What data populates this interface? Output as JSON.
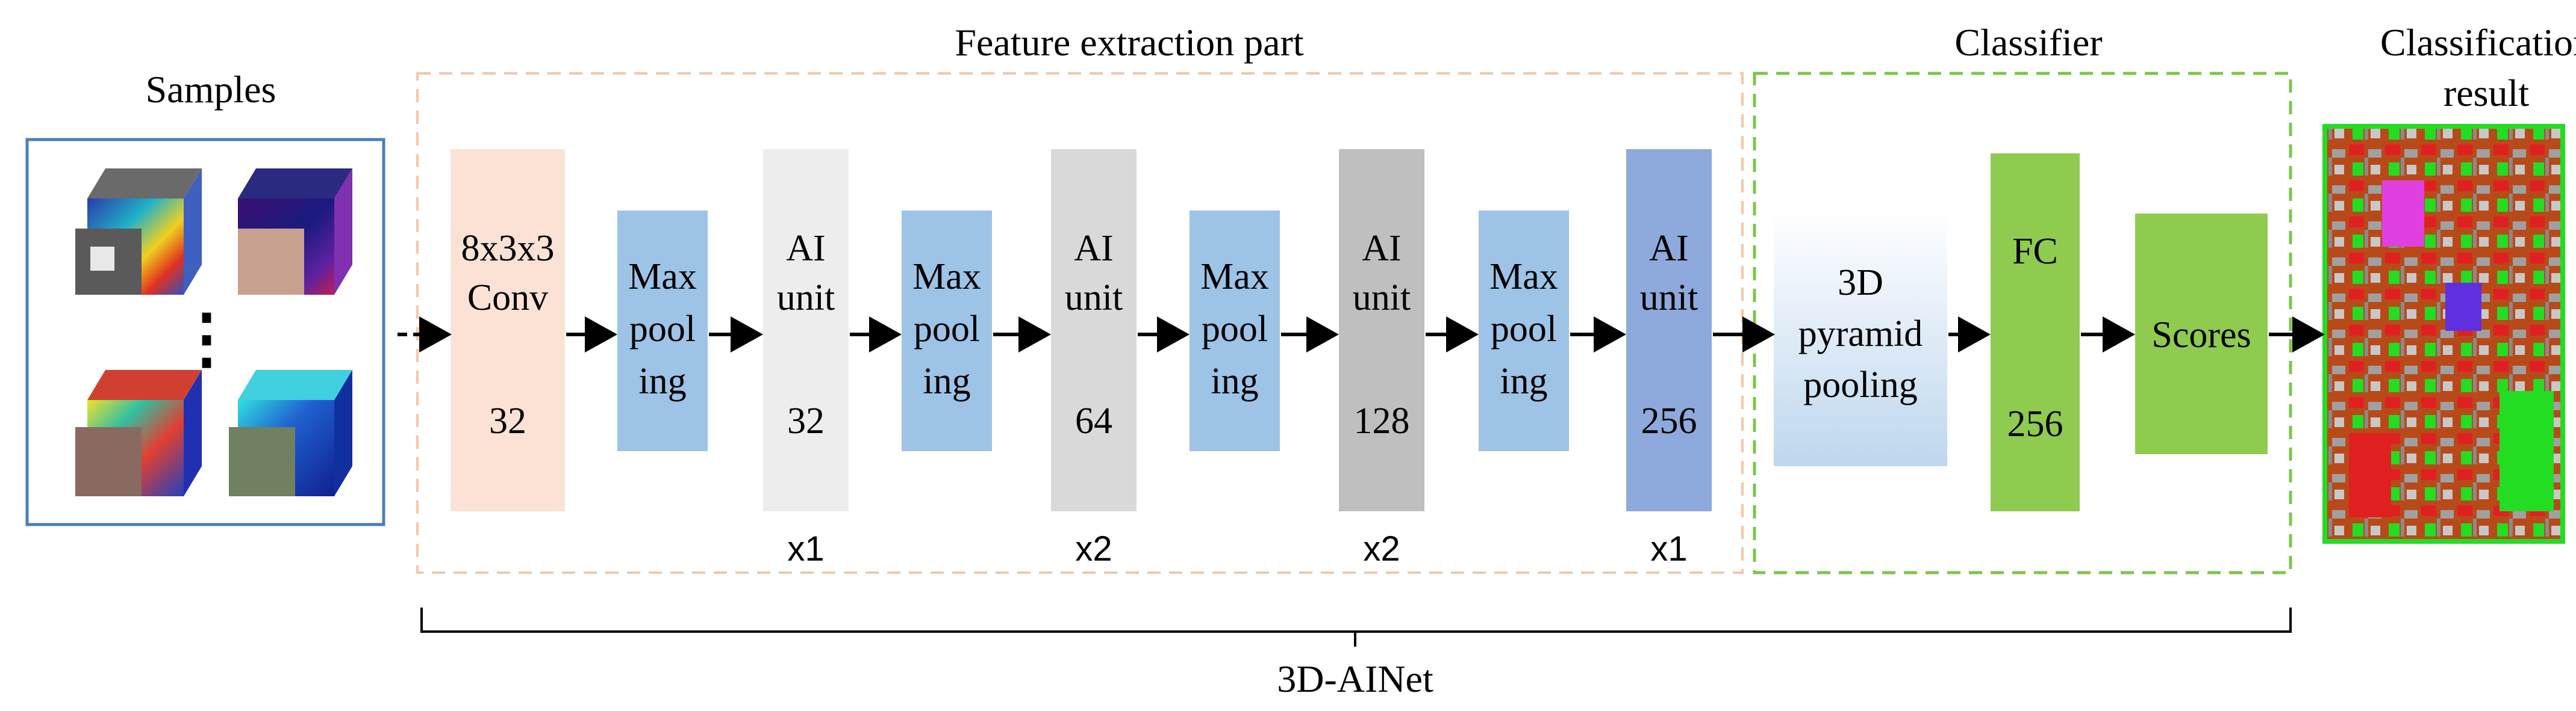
{
  "labels": {
    "samples": "Samples",
    "feature_part": "Feature extraction part",
    "classifier": "Classifier",
    "classification_result": [
      "Classification",
      "result"
    ],
    "network_name": "3D-AINet"
  },
  "samples_panel": {
    "cubes": [
      "hyperspectral-cube-1",
      "hyperspectral-cube-2",
      "hyperspectral-cube-3",
      "hyperspectral-cube-4"
    ],
    "ellipsis": "⋮"
  },
  "blocks": {
    "conv": {
      "lines": [
        "8x3x3",
        "Conv"
      ],
      "number": "32",
      "color": "#FBE2D5"
    },
    "maxpool_1": {
      "lines": [
        "Max",
        "pool",
        "ing"
      ],
      "color": "#9DC3E6"
    },
    "ai_unit_1": {
      "lines": [
        "AI",
        "unit"
      ],
      "number": "32",
      "repeat": "x1",
      "color": "#EDEDED"
    },
    "maxpool_2": {
      "lines": [
        "Max",
        "pool",
        "ing"
      ],
      "color": "#9DC3E6"
    },
    "ai_unit_2": {
      "lines": [
        "AI",
        "unit"
      ],
      "number": "64",
      "repeat": "x2",
      "color": "#D9D9D9"
    },
    "maxpool_3": {
      "lines": [
        "Max",
        "pool",
        "ing"
      ],
      "color": "#9DC3E6"
    },
    "ai_unit_3": {
      "lines": [
        "AI",
        "unit"
      ],
      "number": "128",
      "repeat": "x2",
      "color": "#BFBFBF"
    },
    "maxpool_4": {
      "lines": [
        "Max",
        "pool",
        "ing"
      ],
      "color": "#9DC3E6"
    },
    "ai_unit_4": {
      "lines": [
        "AI",
        "unit"
      ],
      "number": "256",
      "repeat": "x1",
      "color": "#8EA9DB"
    },
    "pyramid": {
      "lines": [
        "3D",
        "pyramid",
        "pooling"
      ],
      "color": "#DEEBF7"
    },
    "fc": {
      "lines": [
        "FC"
      ],
      "number": "256",
      "color": "#8FCB4E"
    },
    "scores": {
      "lines": [
        "Scores"
      ],
      "color": "#8FCB4E"
    }
  },
  "colors": {
    "feature_border": "#F4C6A6",
    "classifier_border": "#7CC54A",
    "samples_border": "#4A7EBB",
    "arrow": "#000000"
  }
}
